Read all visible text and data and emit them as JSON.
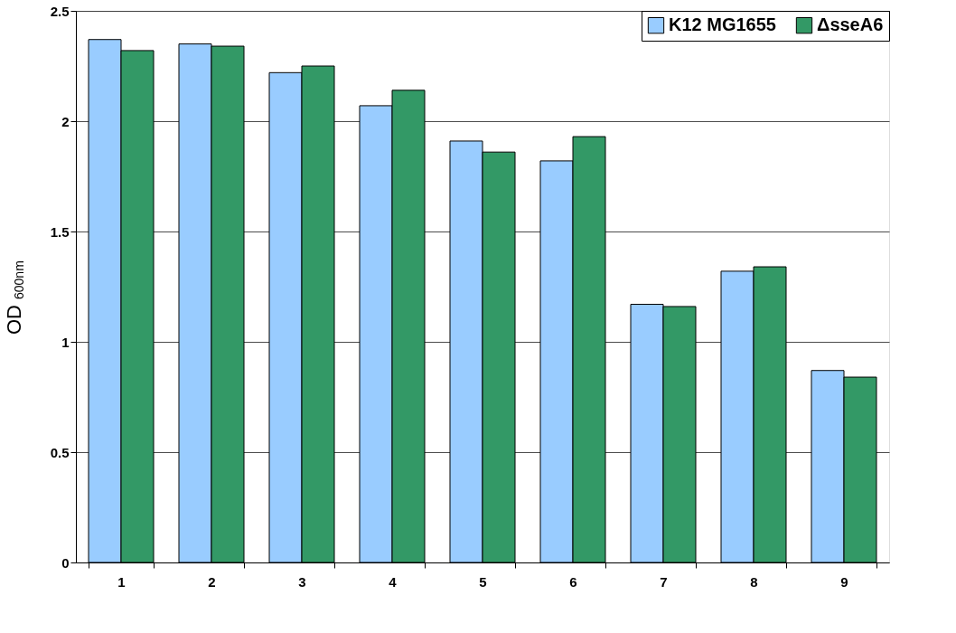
{
  "chart_data": {
    "type": "bar",
    "ylabel": "OD$_{600nm}$",
    "categories": [
      "1",
      "2",
      "3",
      "4",
      "5",
      "6",
      "7",
      "8",
      "9"
    ],
    "series": [
      {
        "name": "K12 MG1655",
        "color": "#99ccff",
        "values": [
          2.37,
          2.35,
          2.22,
          2.07,
          1.91,
          1.82,
          1.17,
          1.32,
          0.87
        ]
      },
      {
        "name": "ΔsseA6",
        "color": "#339966",
        "values": [
          2.32,
          2.34,
          2.25,
          2.14,
          1.86,
          1.93,
          1.16,
          1.34,
          0.84
        ]
      }
    ],
    "ylim": [
      0,
      2.5
    ],
    "yticks": [
      0,
      0.5,
      1,
      1.5,
      2,
      2.5
    ],
    "grid": "y",
    "legend": "top right"
  }
}
